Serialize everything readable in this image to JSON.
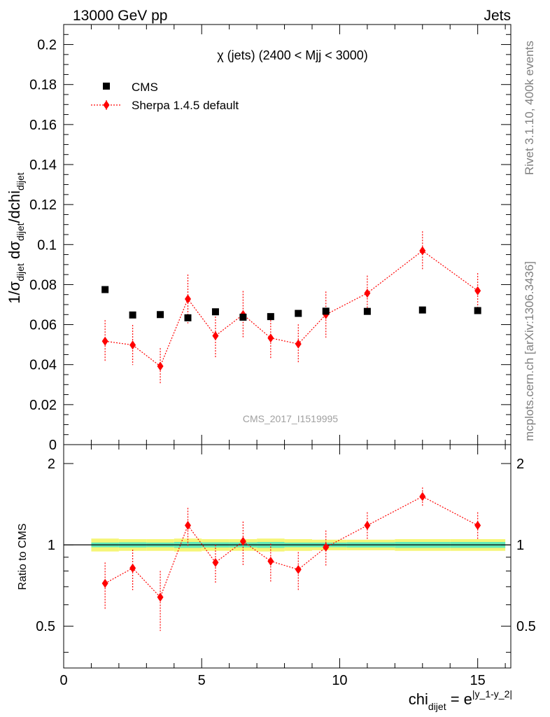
{
  "header": {
    "left": "13000 GeV pp",
    "right": "Jets"
  },
  "side_labels": {
    "rivet": "Rivet 3.1.10,  400k events",
    "source": "mcplots.cern.ch [arXiv:1306.3436]"
  },
  "chart_data": [
    {
      "type": "scatter",
      "panel": "main",
      "title": "χ (jets) (2400 < Mjj < 3000)",
      "watermark": "CMS_2017_I1519995",
      "ylabel_parts": {
        "a": "1/σ",
        "a_sub": "dijet",
        "b": " dσ",
        "b_sub": "dijet",
        "c": "/dchi",
        "c_sub": "dijet"
      },
      "xlim": [
        0,
        16.2
      ],
      "ylim": [
        0,
        0.21
      ],
      "yticks": [
        0,
        0.02,
        0.04,
        0.06,
        0.08,
        0.1,
        0.12,
        0.14,
        0.16,
        0.18,
        0.2
      ],
      "ytick_labels": [
        "0",
        "0.02",
        "0.04",
        "0.06",
        "0.08",
        "0.1",
        "0.12",
        "0.14",
        "0.16",
        "0.18",
        "0.2"
      ],
      "legend_position": "top-left",
      "series": [
        {
          "name": "CMS",
          "color": "#000000",
          "marker": "square",
          "x": [
            1.5,
            2.5,
            3.5,
            4.5,
            5.5,
            6.5,
            7.5,
            8.5,
            9.5,
            11,
            13,
            15
          ],
          "y": [
            0.0775,
            0.0648,
            0.065,
            0.0634,
            0.0664,
            0.0637,
            0.064,
            0.0656,
            0.0667,
            0.0666,
            0.0673,
            0.067
          ]
        },
        {
          "name": "Sherpa 1.4.5 default",
          "color": "#ff0000",
          "marker": "diamond",
          "line": "dotted",
          "x": [
            1.5,
            2.5,
            3.5,
            4.5,
            5.5,
            6.5,
            7.5,
            8.5,
            9.5,
            11,
            13,
            15
          ],
          "y": [
            0.0517,
            0.0498,
            0.0392,
            0.0728,
            0.0544,
            0.065,
            0.0533,
            0.0503,
            0.065,
            0.0757,
            0.0969,
            0.0769
          ],
          "yerr": [
            0.0105,
            0.01,
            0.009,
            0.0122,
            0.011,
            0.0118,
            0.0103,
            0.0098,
            0.0115,
            0.0088,
            0.0097,
            0.0088
          ]
        }
      ]
    },
    {
      "type": "scatter",
      "panel": "ratio",
      "ylabel": "Ratio to CMS",
      "xlabel_parts": {
        "base": "chi",
        "sub": "dijet",
        "eq": " = e",
        "sup": "|y_1-y_2|"
      },
      "xlim": [
        0,
        16.2
      ],
      "ylim": [
        0.35,
        2.35
      ],
      "xticks": [
        0,
        5,
        10,
        15
      ],
      "xtick_labels": [
        "0",
        "5",
        "10",
        "15"
      ],
      "yticks": [
        0.5,
        1,
        2
      ],
      "ytick_labels": [
        "0.5",
        "1",
        "2"
      ],
      "reference_line": 1,
      "band": {
        "x_range": [
          1,
          16
        ],
        "inner_color": "#62eab8",
        "outer_color": "#f5f576",
        "inner_halfwidth": [
          0.02,
          0.022,
          0.02,
          0.025,
          0.022,
          0.022,
          0.025,
          0.02,
          0.02,
          0.022,
          0.025,
          0.025
        ],
        "outer_halfwidth": [
          0.055,
          0.05,
          0.05,
          0.055,
          0.05,
          0.05,
          0.055,
          0.05,
          0.045,
          0.045,
          0.05,
          0.05
        ]
      },
      "series": [
        {
          "name": "Sherpa 1.4.5 default",
          "color": "#ff0000",
          "marker": "diamond",
          "line": "dotted",
          "x": [
            1.5,
            2.5,
            3.5,
            4.5,
            5.5,
            6.5,
            7.5,
            8.5,
            9.5,
            11,
            13,
            15
          ],
          "y": [
            0.72,
            0.82,
            0.64,
            1.18,
            0.86,
            1.03,
            0.87,
            0.81,
            0.98,
            1.18,
            1.51,
            1.18
          ],
          "yerr": [
            0.14,
            0.14,
            0.16,
            0.19,
            0.14,
            0.19,
            0.14,
            0.13,
            0.15,
            0.14,
            0.12,
            0.14
          ]
        }
      ]
    }
  ]
}
